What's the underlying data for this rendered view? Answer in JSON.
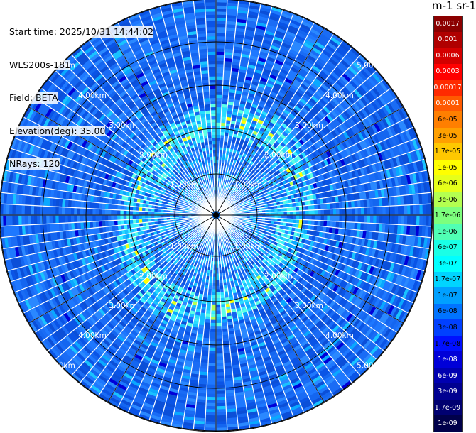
{
  "header": {
    "start_time": "Start time: 2025/10/31 14:44:02",
    "instrument": "WLS200s-181",
    "field": "Field: BETA",
    "elevation": "Elevation(deg): 35.00",
    "nrays": "NRays: 120"
  },
  "colorbar": {
    "unit_title": "m-1 sr-1",
    "labels": [
      "0.0017",
      "0.001",
      "0.0006",
      "0.0003",
      "0.00017",
      "0.0001",
      "6e-05",
      "3e-05",
      "1.7e-05",
      "1e-05",
      "6e-06",
      "3e-06",
      "1.7e-06",
      "1e-06",
      "6e-07",
      "3e-07",
      "1.7e-07",
      "1e-07",
      "6e-08",
      "3e-08",
      "1.7e-08",
      "1e-08",
      "6e-09",
      "3e-09",
      "1.7e-09",
      "1e-09"
    ],
    "colors": [
      "#8b0000",
      "#b00000",
      "#d40000",
      "#ff0000",
      "#ff2a00",
      "#ff5a00",
      "#ff7f00",
      "#ffa000",
      "#ffc800",
      "#ffff00",
      "#e6ff1a",
      "#b4ff50",
      "#7dff7d",
      "#50ffb4",
      "#1affe6",
      "#00ffff",
      "#00d4ff",
      "#00a0ff",
      "#0073ff",
      "#0040ff",
      "#0010ff",
      "#0000d8",
      "#0000b0",
      "#000090",
      "#000070",
      "#00004a"
    ],
    "light_text_indices": [
      0,
      1,
      2,
      3,
      4,
      5,
      21,
      22,
      23,
      24,
      25
    ]
  },
  "range_labels": [
    "1.00km",
    "2.00km",
    "3.00km",
    "4.00km",
    "5.00km"
  ],
  "plot": {
    "rings_km": [
      1,
      2,
      3,
      4,
      5
    ],
    "max_range_km": 6,
    "n_rays": 120,
    "spoke_count": 12
  }
}
